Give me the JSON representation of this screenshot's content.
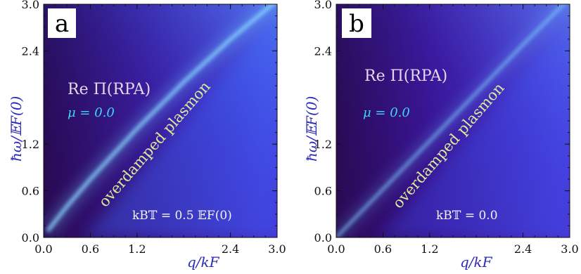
{
  "chart_data": [
    {
      "type": "heatmap",
      "panel_label": "a",
      "quantity_label": "Re Π(RPA)",
      "mu_label": "μ = 0.0",
      "annotation": "overdamped plasmon",
      "temperature_label": "kB𝕋 = 0.5 𝔼F(0)",
      "xlabel": "q/kF",
      "ylabel": "ħω/𝔼F(0)",
      "xlim": [
        0.0,
        3.0
      ],
      "ylim": [
        0.0,
        3.0
      ],
      "x_ticks": [
        "0.0",
        "0.6",
        "1.2",
        "2.4",
        "3.0"
      ],
      "y_ticks": [
        "0.0",
        "0.6",
        "1.2",
        "2.4",
        "3.0"
      ],
      "plasmon_branch": {
        "x": [
          0.05,
          0.3,
          0.6,
          1.2,
          1.8,
          2.4,
          3.0
        ],
        "y": [
          0.08,
          0.4,
          0.75,
          1.4,
          2.0,
          2.55,
          3.05
        ]
      }
    },
    {
      "type": "heatmap",
      "panel_label": "b",
      "quantity_label": "Re Π(RPA)",
      "mu_label": "μ = 0.0",
      "annotation": "overdamped plasmon",
      "temperature_label": "kB𝕋 = 0.0",
      "xlabel": "q/kF",
      "ylabel": "ħω/𝔼F(0)",
      "xlim": [
        0.0,
        3.0
      ],
      "ylim": [
        0.0,
        3.0
      ],
      "x_ticks": [
        "0.0",
        "0.6",
        "1.2",
        "2.4",
        "3.0"
      ],
      "y_ticks": [
        "0.0",
        "0.6",
        "1.2",
        "2.4",
        "3.0"
      ],
      "plasmon_branch": {
        "x": [
          0.0,
          0.6,
          1.2,
          1.8,
          2.4,
          3.0
        ],
        "y": [
          0.0,
          0.62,
          1.24,
          1.86,
          2.48,
          3.08
        ]
      }
    }
  ]
}
